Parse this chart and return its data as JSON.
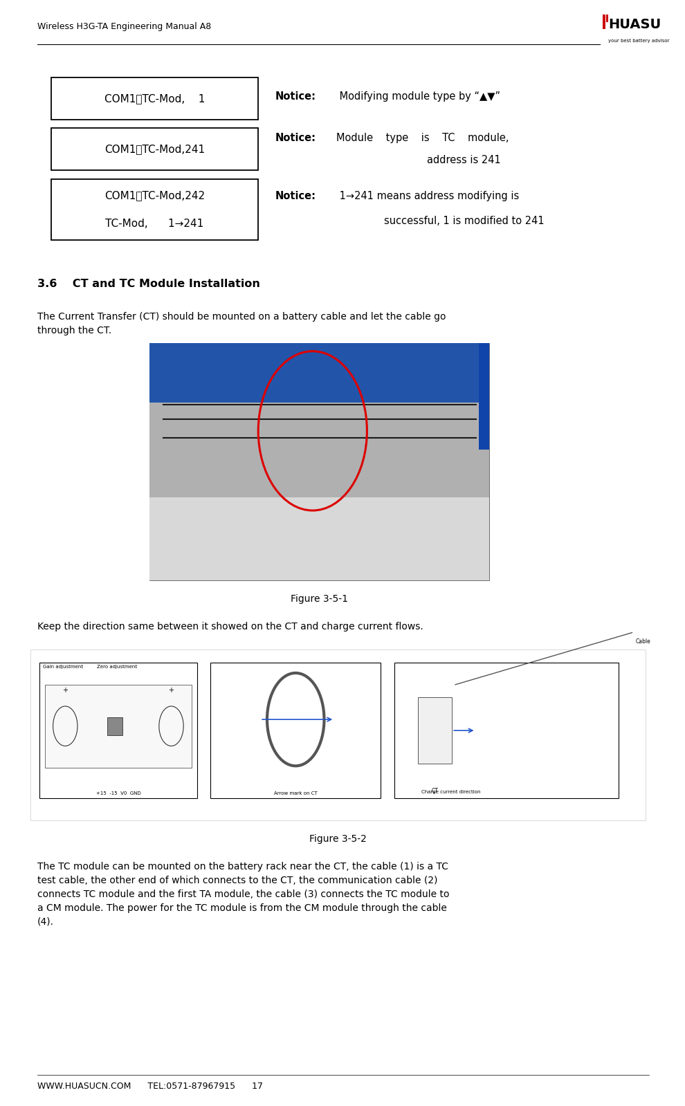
{
  "page_width": 9.9,
  "page_height": 15.99,
  "bg_color": "#ffffff",
  "header_title": "Wireless H3G-TA Engineering Manual A8",
  "footer_text": "WWW.HUASUCN.COM      TEL:0571-87967915      17",
  "box1_text": "COM1，TC-Mod,    1",
  "box2_text": "COM1，TC-Mod,241",
  "box3_line1": "COM1，TC-Mod,242",
  "box3_line2": "TC-Mod,      1→241",
  "section_title": "3.6    CT and TC Module Installation",
  "para1": "The Current Transfer (CT) should be mounted on a battery cable and let the cable go\nthrough the CT.",
  "fig1_caption": "Figure 3-5-1",
  "para2": "Keep the direction same between it showed on the CT and charge current flows.",
  "fig2_caption": "Figure 3-5-2",
  "para3": "The TC module can be mounted on the battery rack near the CT, the cable (1) is a TC\ntest cable, the other end of which connects to the CT, the communication cable (2)\nconnects TC module and the first TA module, the cable (3) connects the TC module to\na CM module. The power for the TC module is from the CM module through the cable\n(4).",
  "text_color": "#000000",
  "fig1_blue": "#2a5a8c",
  "fig1_gray": "#9a9a9a",
  "fig1_lightgray": "#c8c8c8",
  "fig1_white": "#dcdcdc"
}
